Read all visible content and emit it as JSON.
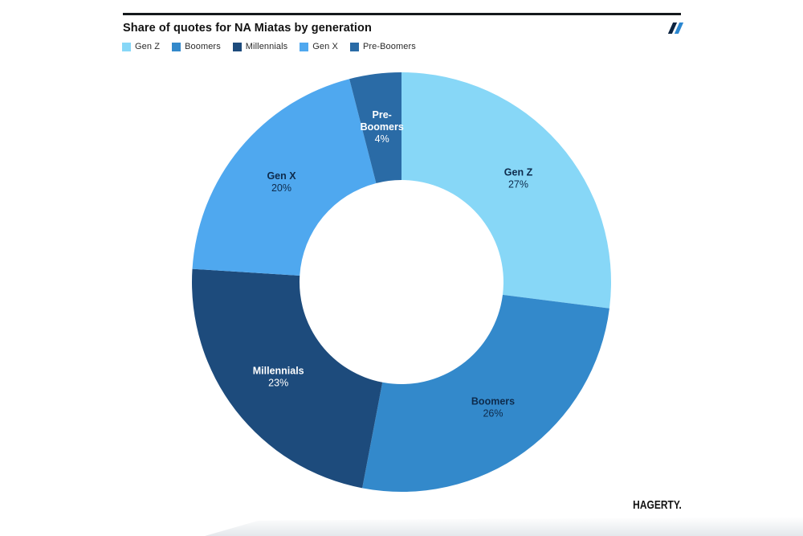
{
  "header": {
    "title": "Share of quotes for NA Miatas by generation",
    "brand_mark_icon": "double-slash",
    "brand_mark_colors": [
      "#0c2340",
      "#2b87d1"
    ]
  },
  "legend": {
    "position": "top-left",
    "items": [
      {
        "label": "Gen Z",
        "color": "#87D7F7"
      },
      {
        "label": "Boomers",
        "color": "#3389CB"
      },
      {
        "label": "Millennials",
        "color": "#1D4B7C"
      },
      {
        "label": "Gen X",
        "color": "#4FA8EF"
      },
      {
        "label": "Pre-Boomers",
        "color": "#2A6BA6"
      }
    ]
  },
  "chart_data": {
    "type": "pie",
    "subtype": "donut",
    "title": "Share of quotes for NA Miatas by generation",
    "categories": [
      "Gen Z",
      "Boomers",
      "Millennials",
      "Gen X",
      "Pre-Boomers"
    ],
    "values": [
      27,
      26,
      23,
      20,
      4
    ],
    "unit": "%",
    "colors": [
      "#87D7F7",
      "#3389CB",
      "#1D4B7C",
      "#4FA8EF",
      "#2A6BA6"
    ],
    "label_lines": [
      [
        "Gen Z"
      ],
      [
        "Boomers"
      ],
      [
        "Millennials"
      ],
      [
        "Gen X"
      ],
      [
        "Pre-",
        "Boomers"
      ]
    ],
    "label_colors": [
      "#0E2B4C",
      "#0E2B4C",
      "#FFFFFF",
      "#0E2B4C",
      "#FFFFFF"
    ],
    "start_angle_deg": 0,
    "direction": "clockwise",
    "legend_position": "top",
    "grid": false
  },
  "footer": {
    "brand": "HAGERTY."
  }
}
